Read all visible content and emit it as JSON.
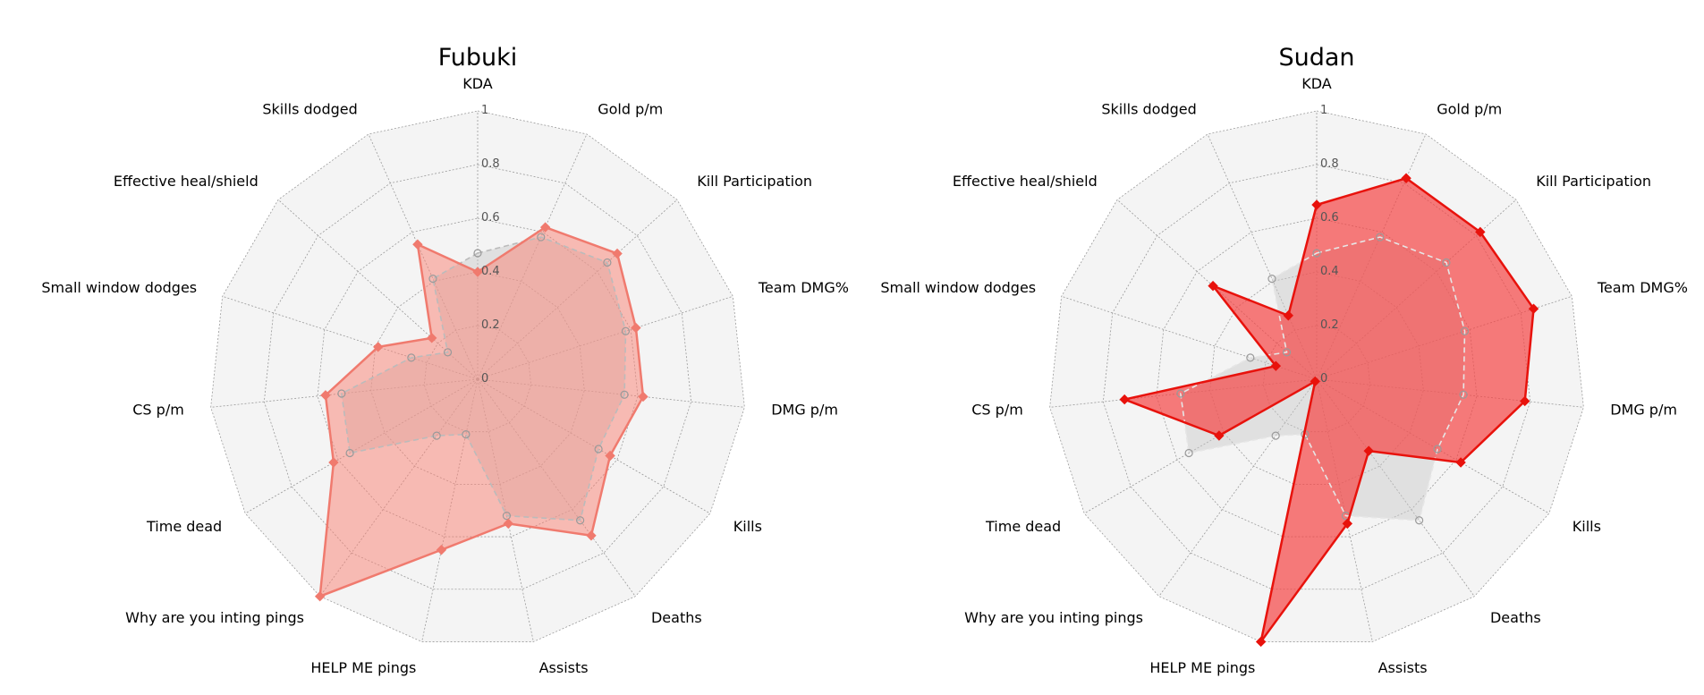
{
  "chart_data": [
    {
      "type": "radar",
      "title": "Fubuki",
      "categories": [
        "KDA",
        "Gold p/m",
        "Kill Participation",
        "Team DMG%",
        "DMG p/m",
        "Kills",
        "Deaths",
        "Assists",
        "HELP ME pings",
        "Why are you inting pings",
        "Time dead",
        "CS p/m",
        "Small window dodges",
        "Effective heal/shield",
        "Skills dodged"
      ],
      "rlim": [
        0,
        1
      ],
      "rticks": [
        "0",
        "0.2",
        "0.4",
        "0.6",
        "0.8",
        "1"
      ],
      "grid": true,
      "series": [
        {
          "values": [
            0.4,
            0.62,
            0.7,
            0.62,
            0.62,
            0.57,
            0.72,
            0.55,
            0.65,
            1.0,
            0.62,
            0.57,
            0.39,
            0.23,
            0.55
          ]
        },
        {
          "values": [
            0.47,
            0.58,
            0.65,
            0.58,
            0.55,
            0.52,
            0.65,
            0.52,
            0.21,
            0.26,
            0.55,
            0.51,
            0.26,
            0.15,
            0.41
          ]
        }
      ],
      "colors": {
        "main_line": "#f07a6e",
        "main_fill": "#fa8072",
        "main_fill_opacity": 0.5,
        "ref_line": "#bbbbbb",
        "ref_fill": "#c8c8c8"
      }
    },
    {
      "type": "radar",
      "title": "Sudan",
      "categories": [
        "KDA",
        "Gold p/m",
        "Kill Participation",
        "Team DMG%",
        "DMG p/m",
        "Kills",
        "Deaths",
        "Assists",
        "HELP ME pings",
        "Why are you inting pings",
        "Time dead",
        "CS p/m",
        "Small window dodges",
        "Effective heal/shield",
        "Skills dodged"
      ],
      "rlim": [
        0,
        1
      ],
      "rticks": [
        "0",
        "0.2",
        "0.4",
        "0.6",
        "0.8",
        "1"
      ],
      "grid": true,
      "series": [
        {
          "values": [
            0.65,
            0.82,
            0.82,
            0.85,
            0.78,
            0.62,
            0.33,
            0.55,
            1.0,
            0.01,
            0.42,
            0.72,
            0.16,
            0.52,
            0.26
          ]
        },
        {
          "values": [
            0.47,
            0.58,
            0.65,
            0.58,
            0.55,
            0.52,
            0.65,
            0.52,
            0.21,
            0.26,
            0.55,
            0.51,
            0.26,
            0.15,
            0.41
          ]
        }
      ],
      "colors": {
        "main_line": "#e8120c",
        "main_fill": "#f54545",
        "main_fill_opacity": 0.7,
        "ref_line": "#e6e6e6",
        "ref_fill": "#c8c8c8"
      }
    }
  ]
}
